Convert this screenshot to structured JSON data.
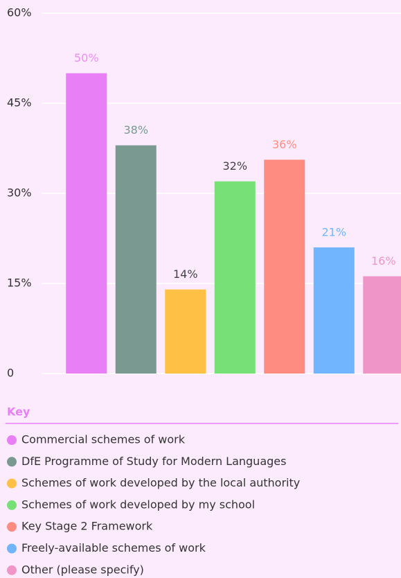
{
  "chart_data": {
    "type": "bar",
    "legend_title": "Key",
    "categories": [
      "Commercial schemes of work",
      "DfE Programme of Study for Modern Languages",
      "Schemes of work developed by the local authority",
      "Schemes of work developed by my school",
      "Key Stage 2 Framework",
      "Freely-available schemes of work",
      "Other (please specify)"
    ],
    "values": [
      50,
      38,
      14,
      32,
      35.6,
      21,
      16.2
    ],
    "value_labels": [
      "50%",
      "38%",
      "14%",
      "32%",
      "36%",
      "21%",
      "16%"
    ],
    "colors": [
      "#e87ff7",
      "#7a9990",
      "#ffc145",
      "#77e077",
      "#ff8c80",
      "#72b5ff",
      "#ef95c8"
    ],
    "value_label_colors": [
      "#ee8cf5",
      "#7a9990",
      "#444444",
      "#444444",
      "#ff8c80",
      "#72b5ff",
      "#ef95c8"
    ],
    "ylim": [
      0,
      60
    ],
    "yticks": [
      0,
      {
        "value": 15,
        "label": "15%"
      },
      {
        "value": 30,
        "label": "30%"
      },
      {
        "value": 45,
        "label": "45%"
      },
      {
        "value": 60,
        "label": "60%"
      }
    ],
    "grid": true
  }
}
